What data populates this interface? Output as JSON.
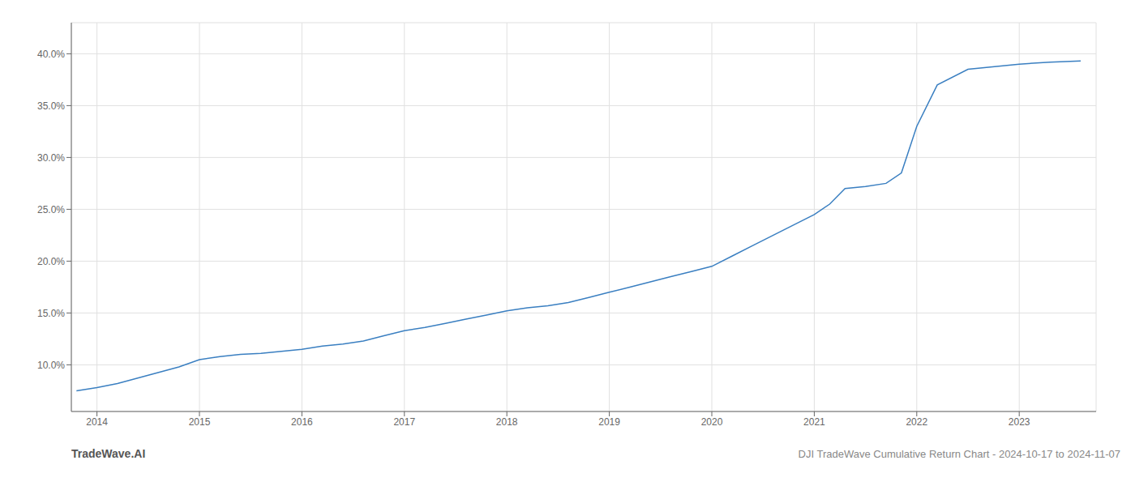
{
  "chart_data": {
    "type": "line",
    "title": "DJI TradeWave Cumulative Return Chart - 2024-10-17 to 2024-11-07",
    "annotations": [
      "TradeWave.AI"
    ],
    "x": [
      2013.8,
      2014.0,
      2014.2,
      2014.5,
      2014.8,
      2015.0,
      2015.2,
      2015.4,
      2015.6,
      2015.8,
      2016.0,
      2016.2,
      2016.4,
      2016.6,
      2016.8,
      2017.0,
      2017.2,
      2017.4,
      2017.6,
      2017.8,
      2018.0,
      2018.2,
      2018.4,
      2018.6,
      2018.8,
      2019.0,
      2019.2,
      2019.4,
      2019.6,
      2019.8,
      2020.0,
      2020.2,
      2020.4,
      2020.6,
      2020.8,
      2021.0,
      2021.15,
      2021.3,
      2021.5,
      2021.7,
      2021.85,
      2022.0,
      2022.2,
      2022.5,
      2022.8,
      2023.0,
      2023.3,
      2023.6
    ],
    "values": [
      7.5,
      7.8,
      8.2,
      9.0,
      9.8,
      10.5,
      10.8,
      11.0,
      11.1,
      11.3,
      11.5,
      11.8,
      12.0,
      12.3,
      12.8,
      13.3,
      13.6,
      14.0,
      14.4,
      14.8,
      15.2,
      15.5,
      15.7,
      16.0,
      16.5,
      17.0,
      17.5,
      18.0,
      18.5,
      19.0,
      19.5,
      20.5,
      21.5,
      22.5,
      23.5,
      24.5,
      25.5,
      27.0,
      27.2,
      27.5,
      28.5,
      33.0,
      37.0,
      38.5,
      38.8,
      39.0,
      39.2,
      39.3
    ],
    "color": "#3a7fc1",
    "xlim": [
      2013.75,
      2023.75
    ],
    "ylim": [
      5.5,
      43.0
    ],
    "xticks": [
      2014,
      2015,
      2016,
      2017,
      2018,
      2019,
      2020,
      2021,
      2022,
      2023
    ],
    "yticks": [
      {
        "value": 10.0,
        "label": "10.0%"
      },
      {
        "value": 15.0,
        "label": "15.0%"
      },
      {
        "value": 20.0,
        "label": "20.0%"
      },
      {
        "value": 25.0,
        "label": "25.0%"
      },
      {
        "value": 30.0,
        "label": "30.0%"
      },
      {
        "value": 35.0,
        "label": "35.0%"
      },
      {
        "value": 40.0,
        "label": "40.0%"
      }
    ],
    "grid": true
  }
}
